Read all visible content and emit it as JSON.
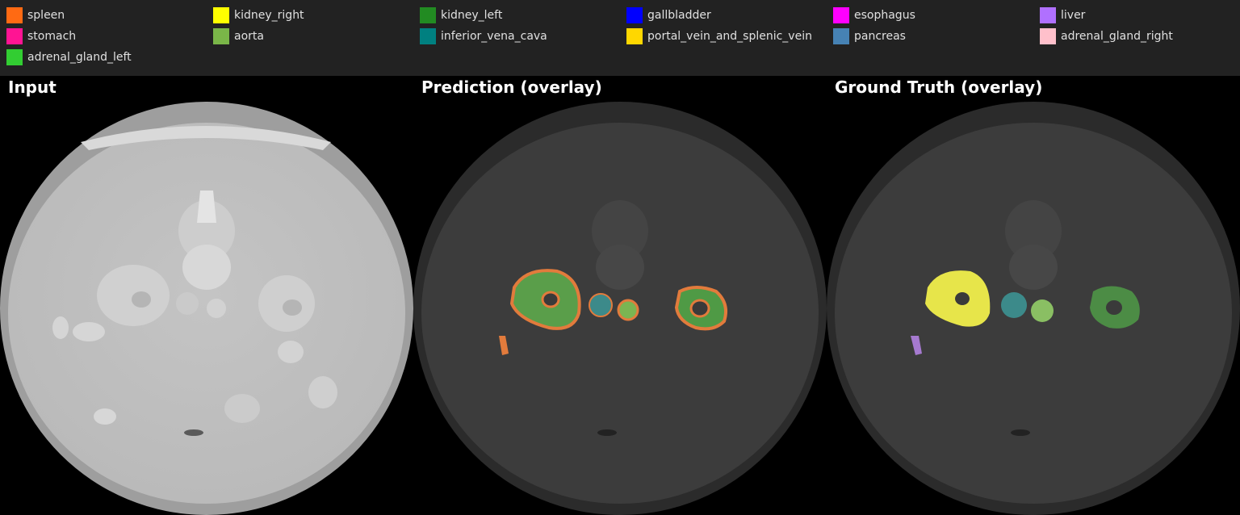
{
  "legend": [
    {
      "label": "spleen",
      "color": "#ff6a13"
    },
    {
      "label": "kidney_right",
      "color": "#ffff00"
    },
    {
      "label": "kidney_left",
      "color": "#228b22"
    },
    {
      "label": "gallbladder",
      "color": "#0000ff"
    },
    {
      "label": "esophagus",
      "color": "#ff00ff"
    },
    {
      "label": "liver",
      "color": "#b070ff"
    },
    {
      "label": "stomach",
      "color": "#ff1493"
    },
    {
      "label": "aorta",
      "color": "#7ab648"
    },
    {
      "label": "inferior_vena_cava",
      "color": "#008080"
    },
    {
      "label": "portal_vein_and_splenic_vein",
      "color": "#ffd700"
    },
    {
      "label": "pancreas",
      "color": "#4682b4"
    },
    {
      "label": "adrenal_gland_right",
      "color": "#ffc0cb"
    },
    {
      "label": "adrenal_gland_left",
      "color": "#32cd32"
    }
  ],
  "panels": {
    "input": {
      "title": "Input"
    },
    "prediction": {
      "title": "Prediction (overlay)"
    },
    "ground_truth": {
      "title": "Ground Truth (overlay)"
    }
  }
}
